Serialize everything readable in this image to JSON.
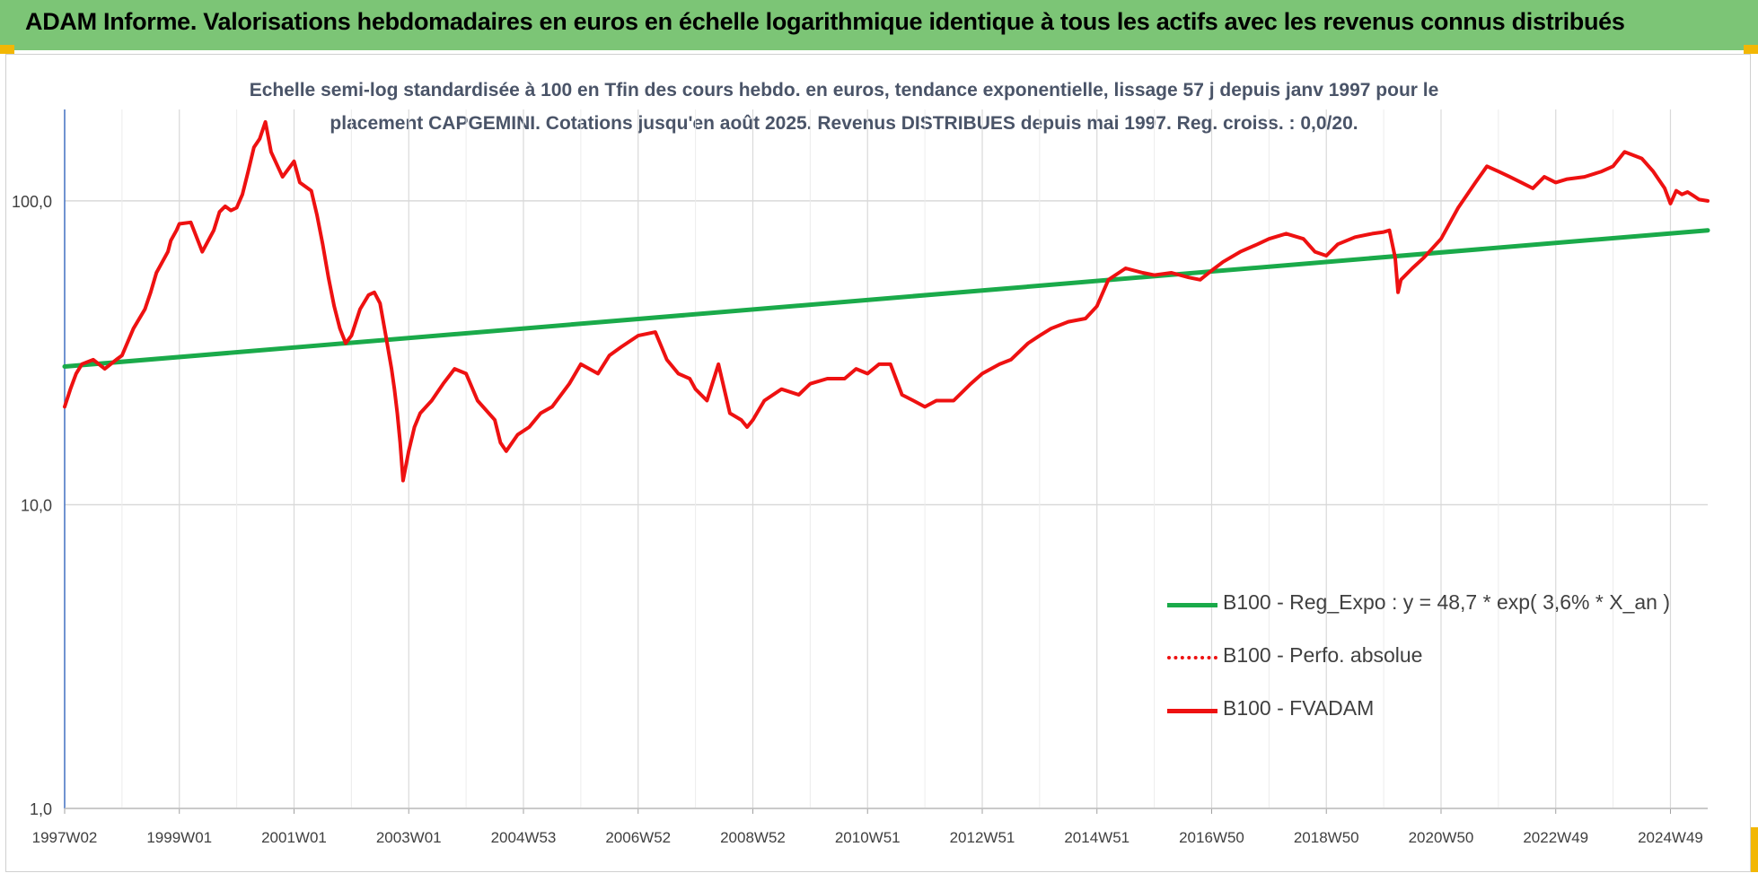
{
  "header": {
    "title": "ADAM Informe. Valorisations hebdomadaires en euros en échelle logarithmique identique à tous les actifs avec les revenus connus distribués"
  },
  "colors": {
    "banner": "#7cc576",
    "corner": "#f2b705",
    "regression": "#1aaa4a",
    "performance": "#ee1111",
    "grid": "#d9d9d9",
    "axis": "#4472c4"
  },
  "chart_data": {
    "type": "line",
    "title_line1": "Echelle semi-log standardisée à 100 en Tfin des cours hebdo. en euros, tendance exponentielle, lissage 57 j depuis janv 1997 pour le",
    "title_line2": "placement CAPGEMINI. Cotations jusqu'en août 2025. Revenus DISTRIBUES depuis mai 1997. Reg. croiss. : 0,0/20.",
    "y_scale": "log",
    "ylim": [
      1,
      200
    ],
    "xlim": [
      1997.0,
      2025.65
    ],
    "y_ticks": [
      {
        "value": 1,
        "label": "1,0"
      },
      {
        "value": 10,
        "label": "10,0"
      },
      {
        "value": 100,
        "label": "100,0"
      }
    ],
    "x_ticks": [
      {
        "value": 1997.0,
        "label": "1997W02"
      },
      {
        "value": 1999.0,
        "label": "1999W01"
      },
      {
        "value": 2001.0,
        "label": "2001W01"
      },
      {
        "value": 2003.0,
        "label": "2003W01"
      },
      {
        "value": 2005.0,
        "label": "2004W53"
      },
      {
        "value": 2007.0,
        "label": "2006W52"
      },
      {
        "value": 2009.0,
        "label": "2008W52"
      },
      {
        "value": 2011.0,
        "label": "2010W51"
      },
      {
        "value": 2013.0,
        "label": "2012W51"
      },
      {
        "value": 2015.0,
        "label": "2014W51"
      },
      {
        "value": 2017.0,
        "label": "2016W50"
      },
      {
        "value": 2019.0,
        "label": "2018W50"
      },
      {
        "value": 2021.0,
        "label": "2020W50"
      },
      {
        "value": 2023.0,
        "label": "2022W49"
      },
      {
        "value": 2025.0,
        "label": "2024W49"
      }
    ],
    "grid": true,
    "legend_position": "bottom-right",
    "series": [
      {
        "name": "B100 - Reg_Expo : y = 48,7 * exp( 3,6% *  X_an )",
        "style": "solid",
        "color": "#1aaa4a",
        "x": [
          1997.0,
          2025.65
        ],
        "y": [
          28.5,
          80
        ]
      },
      {
        "name": "B100 - Perfo. absolue",
        "style": "dotted",
        "color": "#ee1111",
        "x": [],
        "y": []
      },
      {
        "name": "B100 - FVADAM",
        "style": "solid",
        "color": "#ee1111",
        "x": [
          1997.0,
          1997.1,
          1997.2,
          1997.3,
          1997.5,
          1997.7,
          1997.9,
          1998.0,
          1998.2,
          1998.4,
          1998.5,
          1998.6,
          1998.8,
          1998.85,
          1998.95,
          1999.0,
          1999.2,
          1999.4,
          1999.6,
          1999.7,
          1999.8,
          1999.9,
          2000.0,
          2000.1,
          2000.2,
          2000.3,
          2000.4,
          2000.5,
          2000.6,
          2000.8,
          2001.0,
          2001.1,
          2001.3,
          2001.4,
          2001.5,
          2001.6,
          2001.7,
          2001.8,
          2001.9,
          2002.0,
          2002.15,
          2002.3,
          2002.4,
          2002.5,
          2002.6,
          2002.7,
          2002.75,
          2002.8,
          2002.85,
          2002.9,
          2003.0,
          2003.1,
          2003.2,
          2003.4,
          2003.6,
          2003.8,
          2004.0,
          2004.2,
          2004.5,
          2004.6,
          2004.7,
          2004.9,
          2005.1,
          2005.3,
          2005.5,
          2005.8,
          2006.0,
          2006.3,
          2006.5,
          2006.7,
          2007.0,
          2007.3,
          2007.5,
          2007.7,
          2007.9,
          2008.0,
          2008.2,
          2008.4,
          2008.6,
          2008.8,
          2008.9,
          2009.0,
          2009.2,
          2009.5,
          2009.8,
          2010.0,
          2010.3,
          2010.6,
          2010.8,
          2011.0,
          2011.2,
          2011.4,
          2011.6,
          2011.8,
          2012.0,
          2012.2,
          2012.5,
          2012.8,
          2013.0,
          2013.3,
          2013.5,
          2013.8,
          2014.0,
          2014.2,
          2014.5,
          2014.8,
          2015.0,
          2015.2,
          2015.5,
          2015.8,
          2016.0,
          2016.3,
          2016.6,
          2016.8,
          2017.0,
          2017.2,
          2017.5,
          2017.8,
          2018.0,
          2018.3,
          2018.6,
          2018.8,
          2019.0,
          2019.2,
          2019.5,
          2019.8,
          2020.0,
          2020.1,
          2020.2,
          2020.25,
          2020.3,
          2020.5,
          2020.7,
          2021.0,
          2021.3,
          2021.6,
          2021.8,
          2022.0,
          2022.2,
          2022.4,
          2022.6,
          2022.8,
          2023.0,
          2023.2,
          2023.5,
          2023.8,
          2024.0,
          2024.2,
          2024.5,
          2024.7,
          2024.9,
          2025.0,
          2025.1,
          2025.2,
          2025.3,
          2025.4,
          2025.5,
          2025.65
        ],
        "y": [
          21,
          24,
          27,
          29,
          30,
          28,
          30,
          31,
          38,
          44,
          50,
          58,
          68,
          74,
          80,
          84,
          85,
          68,
          80,
          92,
          96,
          93,
          95,
          105,
          125,
          150,
          160,
          182,
          145,
          120,
          135,
          115,
          108,
          90,
          72,
          56,
          45,
          38,
          34,
          36,
          44,
          49,
          50,
          46,
          36,
          28,
          24,
          20,
          16,
          12,
          15,
          18,
          20,
          22,
          25,
          28,
          27,
          22,
          19,
          16,
          15,
          17,
          18,
          20,
          21,
          25,
          29,
          27,
          31,
          33,
          36,
          37,
          30,
          27,
          26,
          24,
          22,
          29,
          20,
          19,
          18,
          19,
          22,
          24,
          23,
          25,
          26,
          26,
          28,
          27,
          29,
          29,
          23,
          22,
          21,
          22,
          22,
          25,
          27,
          29,
          30,
          34,
          36,
          38,
          40,
          41,
          45,
          55,
          60,
          58,
          57,
          58,
          56,
          55,
          59,
          63,
          68,
          72,
          75,
          78,
          75,
          68,
          66,
          72,
          76,
          78,
          79,
          80,
          65,
          50,
          55,
          60,
          65,
          75,
          95,
          115,
          130,
          125,
          120,
          115,
          110,
          120,
          115,
          118,
          120,
          125,
          130,
          145,
          138,
          125,
          110,
          98,
          108,
          105,
          107,
          104,
          101,
          100
        ]
      }
    ]
  }
}
